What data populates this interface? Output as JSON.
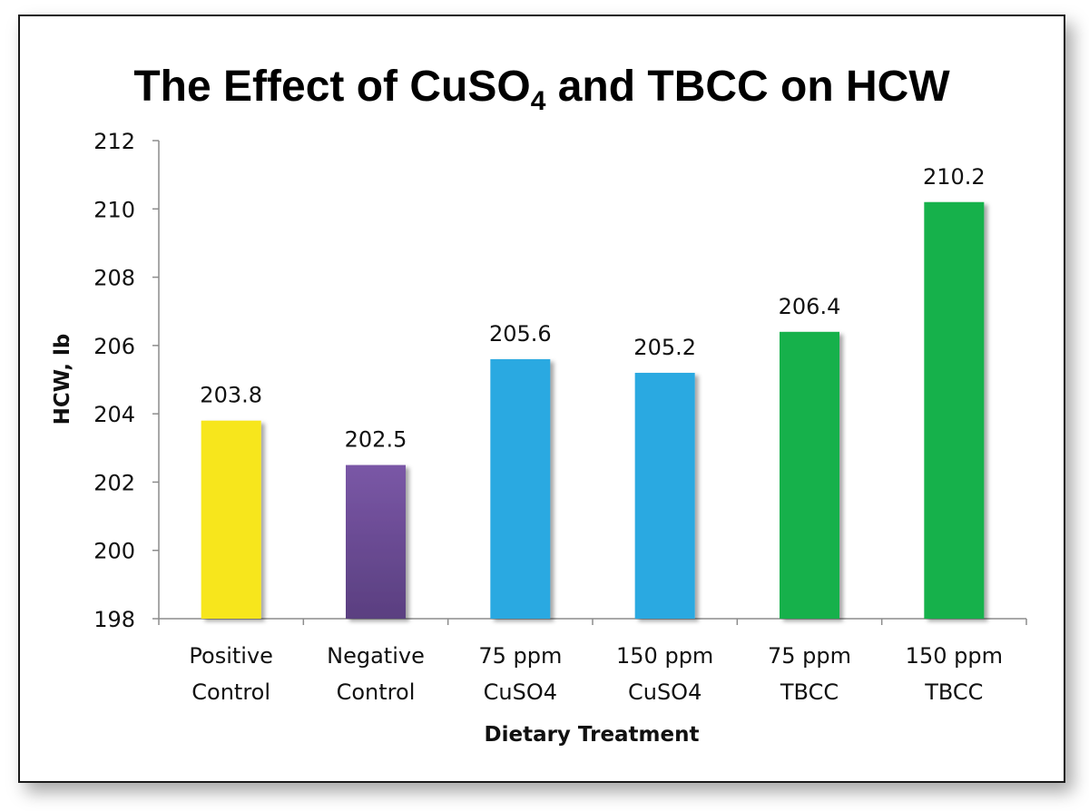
{
  "chart_data": {
    "type": "bar",
    "title": {
      "part1": "The Effect of CuSO",
      "subscript": "4",
      "part2": " and TBCC on HCW"
    },
    "xlabel": "Dietary Treatment",
    "ylabel": "HCW, lb",
    "ylim": [
      198,
      212
    ],
    "yticks": [
      198,
      200,
      202,
      204,
      206,
      208,
      210,
      212
    ],
    "categories": [
      [
        "Positive",
        "Control"
      ],
      [
        "Negative",
        "Control"
      ],
      [
        "75 ppm",
        "CuSO4"
      ],
      [
        "150 ppm",
        "CuSO4"
      ],
      [
        "75 ppm",
        "TBCC"
      ],
      [
        "150 ppm",
        "TBCC"
      ]
    ],
    "values": [
      203.8,
      202.5,
      205.6,
      205.2,
      206.4,
      210.2
    ],
    "value_labels": [
      "203.8",
      "202.5",
      "205.6",
      "205.2",
      "206.4",
      "210.2"
    ],
    "colors": [
      "#f7e61b",
      "#74519e",
      "#29a9e1",
      "#29a9e1",
      "#16b14b",
      "#16b14b"
    ],
    "grid": false,
    "legend": "none"
  }
}
